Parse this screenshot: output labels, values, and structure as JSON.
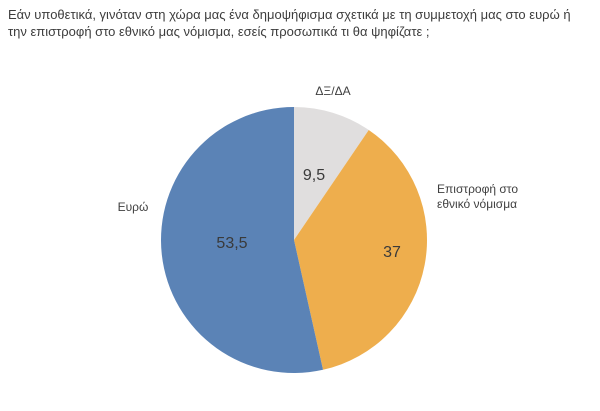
{
  "chart_data": {
    "type": "pie",
    "title": "Εάν υποθετικά, γινόταν στη χώρα μας ένα δημοψήφισμα σχετικά με τη συμμετοχή μας στο ευρώ ή την επιστροφή στο εθνικό μας νόμισμα, εσείς προσωπικά τι θα ψηφίζατε ;",
    "categories": [
      "ΔΞ/ΔΑ",
      "Επιστροφή στο εθνικό νόμισμα",
      "Ευρώ"
    ],
    "values": [
      9.5,
      37,
      53.5
    ],
    "display_values": [
      "9,5",
      "37",
      "53,5"
    ],
    "colors": [
      "#e0dede",
      "#eeae4d",
      "#5b83b6"
    ],
    "start_angle": 0,
    "direction": "clockwise",
    "legend_position": "none",
    "text_color": "#404040",
    "background_color": "#ffffff"
  }
}
